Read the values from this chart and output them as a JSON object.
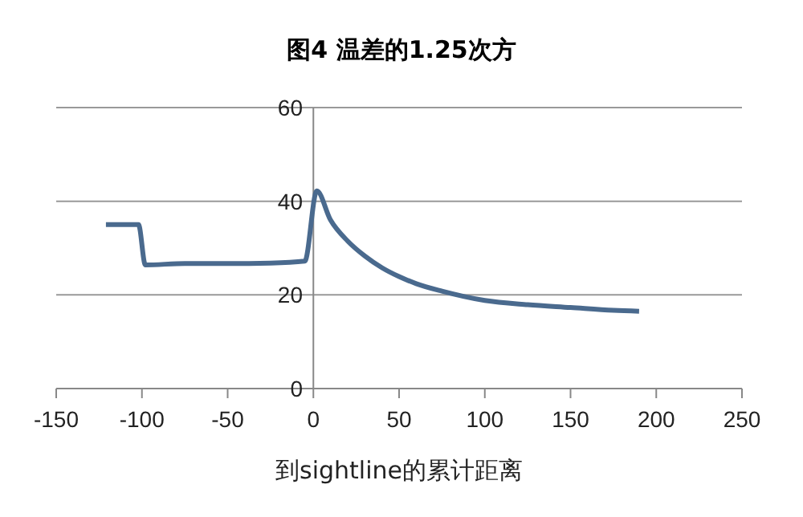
{
  "chart_data": {
    "type": "line",
    "title": "图4 温差的1.25次方",
    "xlabel": "到sightline的累计距离",
    "series": [
      {
        "color": "#4a6a8e",
        "x": [
          -121,
          -102,
          -98,
          -75,
          -50,
          -25,
          -5,
          2,
          10,
          20,
          30,
          40,
          50,
          60,
          75,
          100,
          125,
          150,
          175,
          190
        ],
        "values": [
          35,
          35,
          26.4,
          26.7,
          26.7,
          26.8,
          27.2,
          42.2,
          36,
          31.5,
          28.3,
          25.8,
          23.9,
          22.4,
          20.8,
          18.8,
          17.9,
          17.3,
          16.7,
          16.5
        ]
      }
    ],
    "xlim": [
      -150,
      250
    ],
    "xticks": [
      -150,
      -100,
      -50,
      0,
      50,
      100,
      150,
      200,
      250
    ],
    "ylim": [
      0,
      60
    ],
    "yticks": [
      0,
      20,
      40,
      60
    ],
    "grid": "y",
    "legend": false,
    "marker": "none",
    "line_style": "solid"
  }
}
